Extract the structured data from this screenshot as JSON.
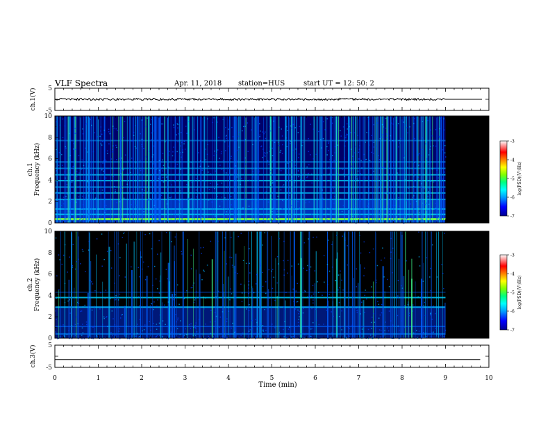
{
  "header": {
    "title": "VLF Spectra",
    "date": "Apr. 11, 2018",
    "station": "station=HUS",
    "start": "start  UT =   12: 50: 2"
  },
  "chart_data": [
    {
      "type": "line",
      "panel": "ch1-waveform",
      "ylabel": "ch.1(V)",
      "ylim": [
        -5,
        5
      ],
      "yticks": [
        "5",
        "-5"
      ],
      "xlim": [
        0,
        10
      ],
      "series_level": 0,
      "data_end_x": 9.0,
      "trace_color": "#000000"
    },
    {
      "type": "heatmap",
      "panel": "ch1-spectrogram",
      "ylabel_line1": "ch.1",
      "ylabel_line2": "Frequency (kHz)",
      "ylim": [
        0,
        10
      ],
      "yticks": [
        "0",
        "2",
        "4",
        "6",
        "8",
        "10"
      ],
      "xlim": [
        0,
        10
      ],
      "data_end_x": 9.0,
      "colorbar": {
        "label": "log(PSD)(V²/Hz)",
        "range": [
          -7,
          -3
        ],
        "ticks": [
          "-3",
          "-4",
          "-5",
          "-6",
          "-7"
        ],
        "colors": [
          "#000090",
          "#0000ff",
          "#00a0ff",
          "#00ffff",
          "#00ff80",
          "#80ff00",
          "#ffff00",
          "#ff8000",
          "#ff0000",
          "#ffffff"
        ]
      }
    },
    {
      "type": "heatmap",
      "panel": "ch2-spectrogram",
      "ylabel_line1": "ch.2",
      "ylabel_line2": "Frequency (kHz)",
      "ylim": [
        0,
        10
      ],
      "yticks": [
        "0",
        "2",
        "4",
        "6",
        "8",
        "10"
      ],
      "xlim": [
        0,
        10
      ],
      "data_end_x": 9.0,
      "colorbar": {
        "label": "log(PSD)(V²/Hz)",
        "range": [
          -7,
          -3
        ],
        "ticks": [
          "-3",
          "-4",
          "-5",
          "-6",
          "-7"
        ],
        "colors": [
          "#000090",
          "#0000ff",
          "#00a0ff",
          "#00ffff",
          "#00ff80",
          "#80ff00",
          "#ffff00",
          "#ff8000",
          "#ff0000",
          "#ffffff"
        ]
      }
    },
    {
      "type": "line",
      "panel": "ch3-waveform",
      "ylabel": "ch.3(V)",
      "ylim": [
        -5,
        5
      ],
      "yticks": [
        "5",
        "-5"
      ],
      "xlim": [
        0,
        10
      ],
      "series_level": -1.5,
      "data_end_x": 9.8,
      "trace_color": "#000000",
      "xlabel": "Time  (min)",
      "xticks": [
        "0",
        "1",
        "2",
        "3",
        "4",
        "5",
        "6",
        "7",
        "8",
        "9",
        "10"
      ]
    }
  ]
}
